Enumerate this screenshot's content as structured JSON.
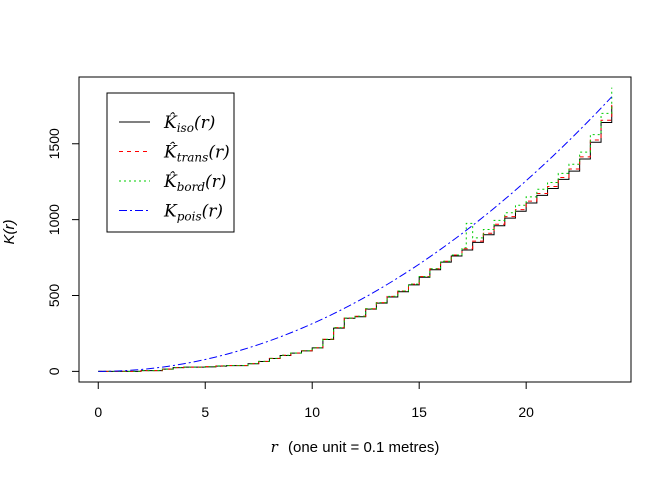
{
  "chart_data": {
    "type": "line",
    "xlabel": "(one unit = 0.1 metres)",
    "xlabel_var": "r",
    "ylabel": "K(r)",
    "xlim": [
      -0.9,
      24.9
    ],
    "ylim": [
      -70,
      1940
    ],
    "xticks": [
      0,
      5,
      10,
      15,
      20
    ],
    "yticks": [
      0,
      500,
      1000,
      1500
    ],
    "grid": false,
    "legend_position": "top-left",
    "series": [
      {
        "name": "K̂iso(r)",
        "name_main": "K̂",
        "name_sub": "iso",
        "color": "#000000",
        "dash": "none",
        "x": [
          0,
          2,
          3,
          3.5,
          4,
          5,
          5.5,
          6,
          7,
          7.5,
          8,
          8.5,
          9,
          9.5,
          10,
          10.5,
          11,
          11.5,
          12,
          12.5,
          13,
          13.5,
          14,
          14.5,
          15,
          15.5,
          16,
          16.5,
          17,
          17.5,
          18,
          18.5,
          19,
          19.5,
          20,
          20.5,
          21,
          21.5,
          22,
          22.5,
          23,
          23.5,
          24
        ],
        "y": [
          0,
          5,
          15,
          25,
          28,
          30,
          35,
          38,
          50,
          65,
          85,
          105,
          120,
          135,
          155,
          210,
          285,
          350,
          360,
          410,
          450,
          490,
          525,
          570,
          620,
          670,
          720,
          760,
          800,
          850,
          900,
          960,
          1010,
          1055,
          1110,
          1160,
          1205,
          1265,
          1320,
          1400,
          1510,
          1640,
          1750
        ]
      },
      {
        "name": "K̂trans(r)",
        "name_main": "K̂",
        "name_sub": "trans",
        "color": "#ff0000",
        "dash": "4,4",
        "x": [
          0,
          2,
          3,
          3.5,
          4,
          5,
          5.5,
          6,
          7,
          7.5,
          8,
          8.5,
          9,
          9.5,
          10,
          10.5,
          11,
          11.5,
          12,
          12.5,
          13,
          13.5,
          14,
          14.5,
          15,
          15.5,
          16,
          16.5,
          17,
          17.5,
          18,
          18.5,
          19,
          19.5,
          20,
          20.5,
          21,
          21.5,
          22,
          22.5,
          23,
          23.5,
          24
        ],
        "y": [
          0,
          5,
          15,
          25,
          28,
          31,
          36,
          39,
          51,
          66,
          86,
          106,
          121,
          136,
          156,
          212,
          288,
          352,
          363,
          413,
          453,
          494,
          530,
          575,
          625,
          676,
          726,
          767,
          808,
          858,
          910,
          970,
          1020,
          1066,
          1122,
          1172,
          1218,
          1278,
          1334,
          1414,
          1525,
          1655,
          1770
        ]
      },
      {
        "name": "K̂bord(r)",
        "name_main": "K̂",
        "name_sub": "bord",
        "color": "#00cc00",
        "dash": "2,3",
        "x": [
          0,
          2,
          3,
          3.5,
          4,
          5,
          5.5,
          6,
          7,
          7.5,
          8,
          8.5,
          9,
          9.5,
          10,
          10.5,
          11,
          11.5,
          12,
          12.5,
          13,
          13.5,
          14,
          14.5,
          15,
          15.5,
          16,
          16.5,
          17,
          17.2,
          17.5,
          18,
          18.5,
          19,
          19.5,
          20,
          20.5,
          21,
          21.5,
          22,
          22.5,
          23,
          23.5,
          24
        ],
        "y": [
          0,
          5,
          15,
          25,
          28,
          31,
          36,
          39,
          51,
          66,
          86,
          106,
          121,
          136,
          156,
          212,
          288,
          352,
          363,
          413,
          453,
          494,
          530,
          575,
          625,
          676,
          726,
          767,
          815,
          975,
          880,
          935,
          995,
          1045,
          1095,
          1150,
          1200,
          1245,
          1305,
          1365,
          1445,
          1560,
          1700,
          1870
        ]
      },
      {
        "name": "Kpois(r)",
        "name_main": "K",
        "name_sub": "pois",
        "color": "#0000ff",
        "dash": "8,3,2,3",
        "x": [
          0,
          1,
          2,
          3,
          4,
          5,
          6,
          7,
          8,
          9,
          10,
          11,
          12,
          13,
          14,
          15,
          16,
          17,
          18,
          19,
          20,
          21,
          22,
          23,
          24
        ],
        "y": [
          0,
          3.1,
          12.6,
          28.3,
          50.3,
          78.5,
          113.1,
          153.9,
          201.1,
          254.5,
          314.2,
          380.1,
          452.4,
          530.9,
          615.8,
          706.9,
          804.2,
          907.9,
          1017.9,
          1134.1,
          1256.6,
          1385.4,
          1520.5,
          1661.9,
          1809.6
        ]
      }
    ]
  }
}
